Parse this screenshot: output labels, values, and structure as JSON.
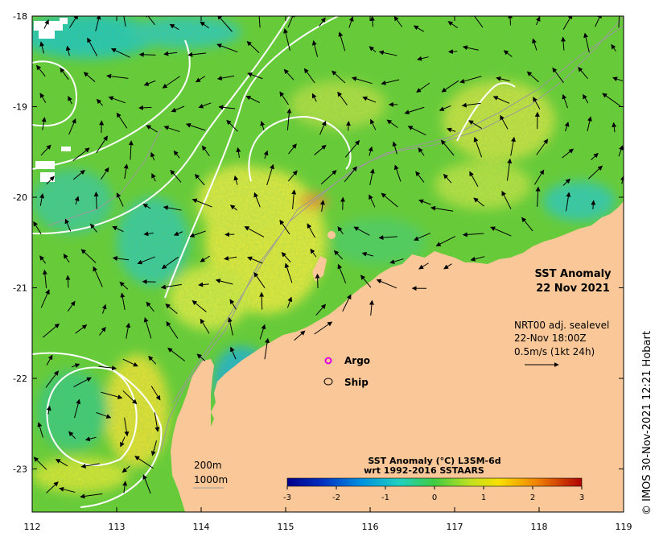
{
  "map": {
    "title_line1": "SST Anomaly",
    "title_line2": "22 Nov 2021",
    "current_info": {
      "line1": "NRT00 adj. sealevel",
      "line2": "22-Nov 18:00Z",
      "line3": "0.5m/s (1kt 24h)"
    },
    "legend": {
      "argo_label": "Argo",
      "argo_color": "#e000e0",
      "ship_label": "Ship"
    },
    "depth_labels": {
      "contour_200": "200m",
      "contour_1000": "1000m"
    },
    "colorbar": {
      "title_line1": "SST Anomaly (°C) L3SM-6d",
      "title_line2": "wrt 1992-2016 SSTAARS",
      "ticks": [
        "-3",
        "-2",
        "-1",
        "0",
        "1",
        "2",
        "3"
      ],
      "range": [
        -3,
        3
      ]
    },
    "credit": "© IMOS 30-Nov-2021 12:21 Hobart",
    "x_axis_ticks": [
      "112",
      "113",
      "114",
      "115",
      "116",
      "117",
      "118",
      "119"
    ],
    "y_axis_ticks": [
      "-18",
      "-19",
      "-20",
      "-21",
      "-22",
      "-23"
    ],
    "colors": {
      "land": "#fac898",
      "ocean_base": "#66cc33",
      "warm_anomaly": "#e8e040",
      "cool_anomaly": "#20c0c0",
      "contour_lines": "#ffffff",
      "bathymetry": "#9a9a9a"
    }
  }
}
